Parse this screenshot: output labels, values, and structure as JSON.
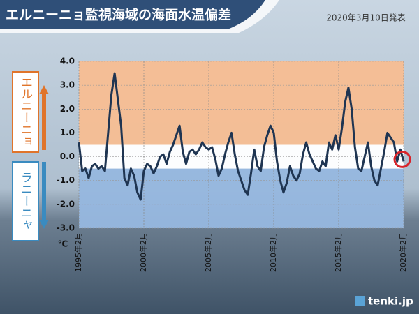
{
  "chart_data": {
    "type": "line",
    "title": "エルニーニョ監視海域の海面水温偏差",
    "subtitle": "2020年3月10日発表",
    "y_label": "℃",
    "annotations": [
      "エルニーニョ",
      "ラニーニャ"
    ],
    "source": "tenki.jp",
    "categories": [
      "1995年2月",
      null,
      null,
      null,
      null,
      null,
      null,
      null,
      null,
      null,
      null,
      null,
      null,
      null,
      null,
      null,
      null,
      null,
      null,
      null,
      "2000年2月",
      null,
      null,
      null,
      null,
      null,
      null,
      null,
      null,
      null,
      null,
      null,
      null,
      null,
      null,
      null,
      null,
      null,
      null,
      null,
      "2005年2月",
      null,
      null,
      null,
      null,
      null,
      null,
      null,
      null,
      null,
      null,
      null,
      null,
      null,
      null,
      null,
      null,
      null,
      null,
      null,
      "2010年2月",
      null,
      null,
      null,
      null,
      null,
      null,
      null,
      null,
      null,
      null,
      null,
      null,
      null,
      null,
      null,
      null,
      null,
      null,
      null,
      "2015年2月",
      null,
      null,
      null,
      null,
      null,
      null,
      null,
      null,
      null,
      null,
      null,
      null,
      null,
      null,
      null,
      null,
      null,
      null,
      null,
      "2020年2月"
    ],
    "values": [
      0.6,
      -0.6,
      -0.5,
      -0.9,
      -0.4,
      -0.3,
      -0.5,
      -0.4,
      -0.6,
      1.0,
      2.6,
      3.5,
      2.4,
      1.3,
      -0.9,
      -1.2,
      -0.5,
      -0.8,
      -1.5,
      -1.8,
      -0.6,
      -0.3,
      -0.4,
      -0.7,
      -0.4,
      0.0,
      0.1,
      -0.3,
      0.2,
      0.5,
      0.9,
      1.3,
      0.2,
      -0.3,
      0.2,
      0.3,
      0.1,
      0.3,
      0.6,
      0.4,
      0.3,
      0.4,
      -0.1,
      -0.8,
      -0.5,
      0.1,
      0.6,
      1.0,
      0.1,
      -0.6,
      -1.0,
      -1.4,
      -1.6,
      -0.7,
      0.3,
      -0.4,
      -0.6,
      0.4,
      0.9,
      1.3,
      1.0,
      -0.2,
      -1.0,
      -1.5,
      -1.1,
      -0.4,
      -0.8,
      -1.0,
      -0.7,
      0.1,
      0.6,
      0.1,
      -0.2,
      -0.5,
      -0.6,
      -0.2,
      -0.4,
      0.6,
      0.3,
      0.9,
      0.3,
      1.2,
      2.3,
      2.9,
      2.0,
      0.4,
      -0.5,
      -0.6,
      0.0,
      0.6,
      -0.4,
      -1.0,
      -1.2,
      -0.5,
      0.2,
      1.0,
      0.8,
      0.6,
      -0.2,
      0.3,
      -0.2
    ],
    "color": "#1f3552",
    "ylim": [
      -3.0,
      4.0
    ],
    "yticks": [
      {
        "value": 4.0,
        "label": "4.0"
      },
      {
        "value": 3.0,
        "label": "3.0"
      },
      {
        "value": 2.0,
        "label": "2.0"
      },
      {
        "value": 1.0,
        "label": "1.0"
      },
      {
        "value": 0.0,
        "label": "0.0"
      },
      {
        "value": -1.0,
        "label": "-1.0"
      },
      {
        "value": -2.0,
        "label": "-2.0"
      },
      {
        "value": -3.0,
        "label": "-3.0"
      }
    ],
    "bands": [
      {
        "from": 0.5,
        "to": 4.0,
        "color": "#f5b98c"
      },
      {
        "from": -0.5,
        "to": 0.5,
        "color": "#ffffff"
      },
      {
        "from": -3.0,
        "to": -0.5,
        "color": "#8fb2dd"
      }
    ],
    "grid": true
  }
}
